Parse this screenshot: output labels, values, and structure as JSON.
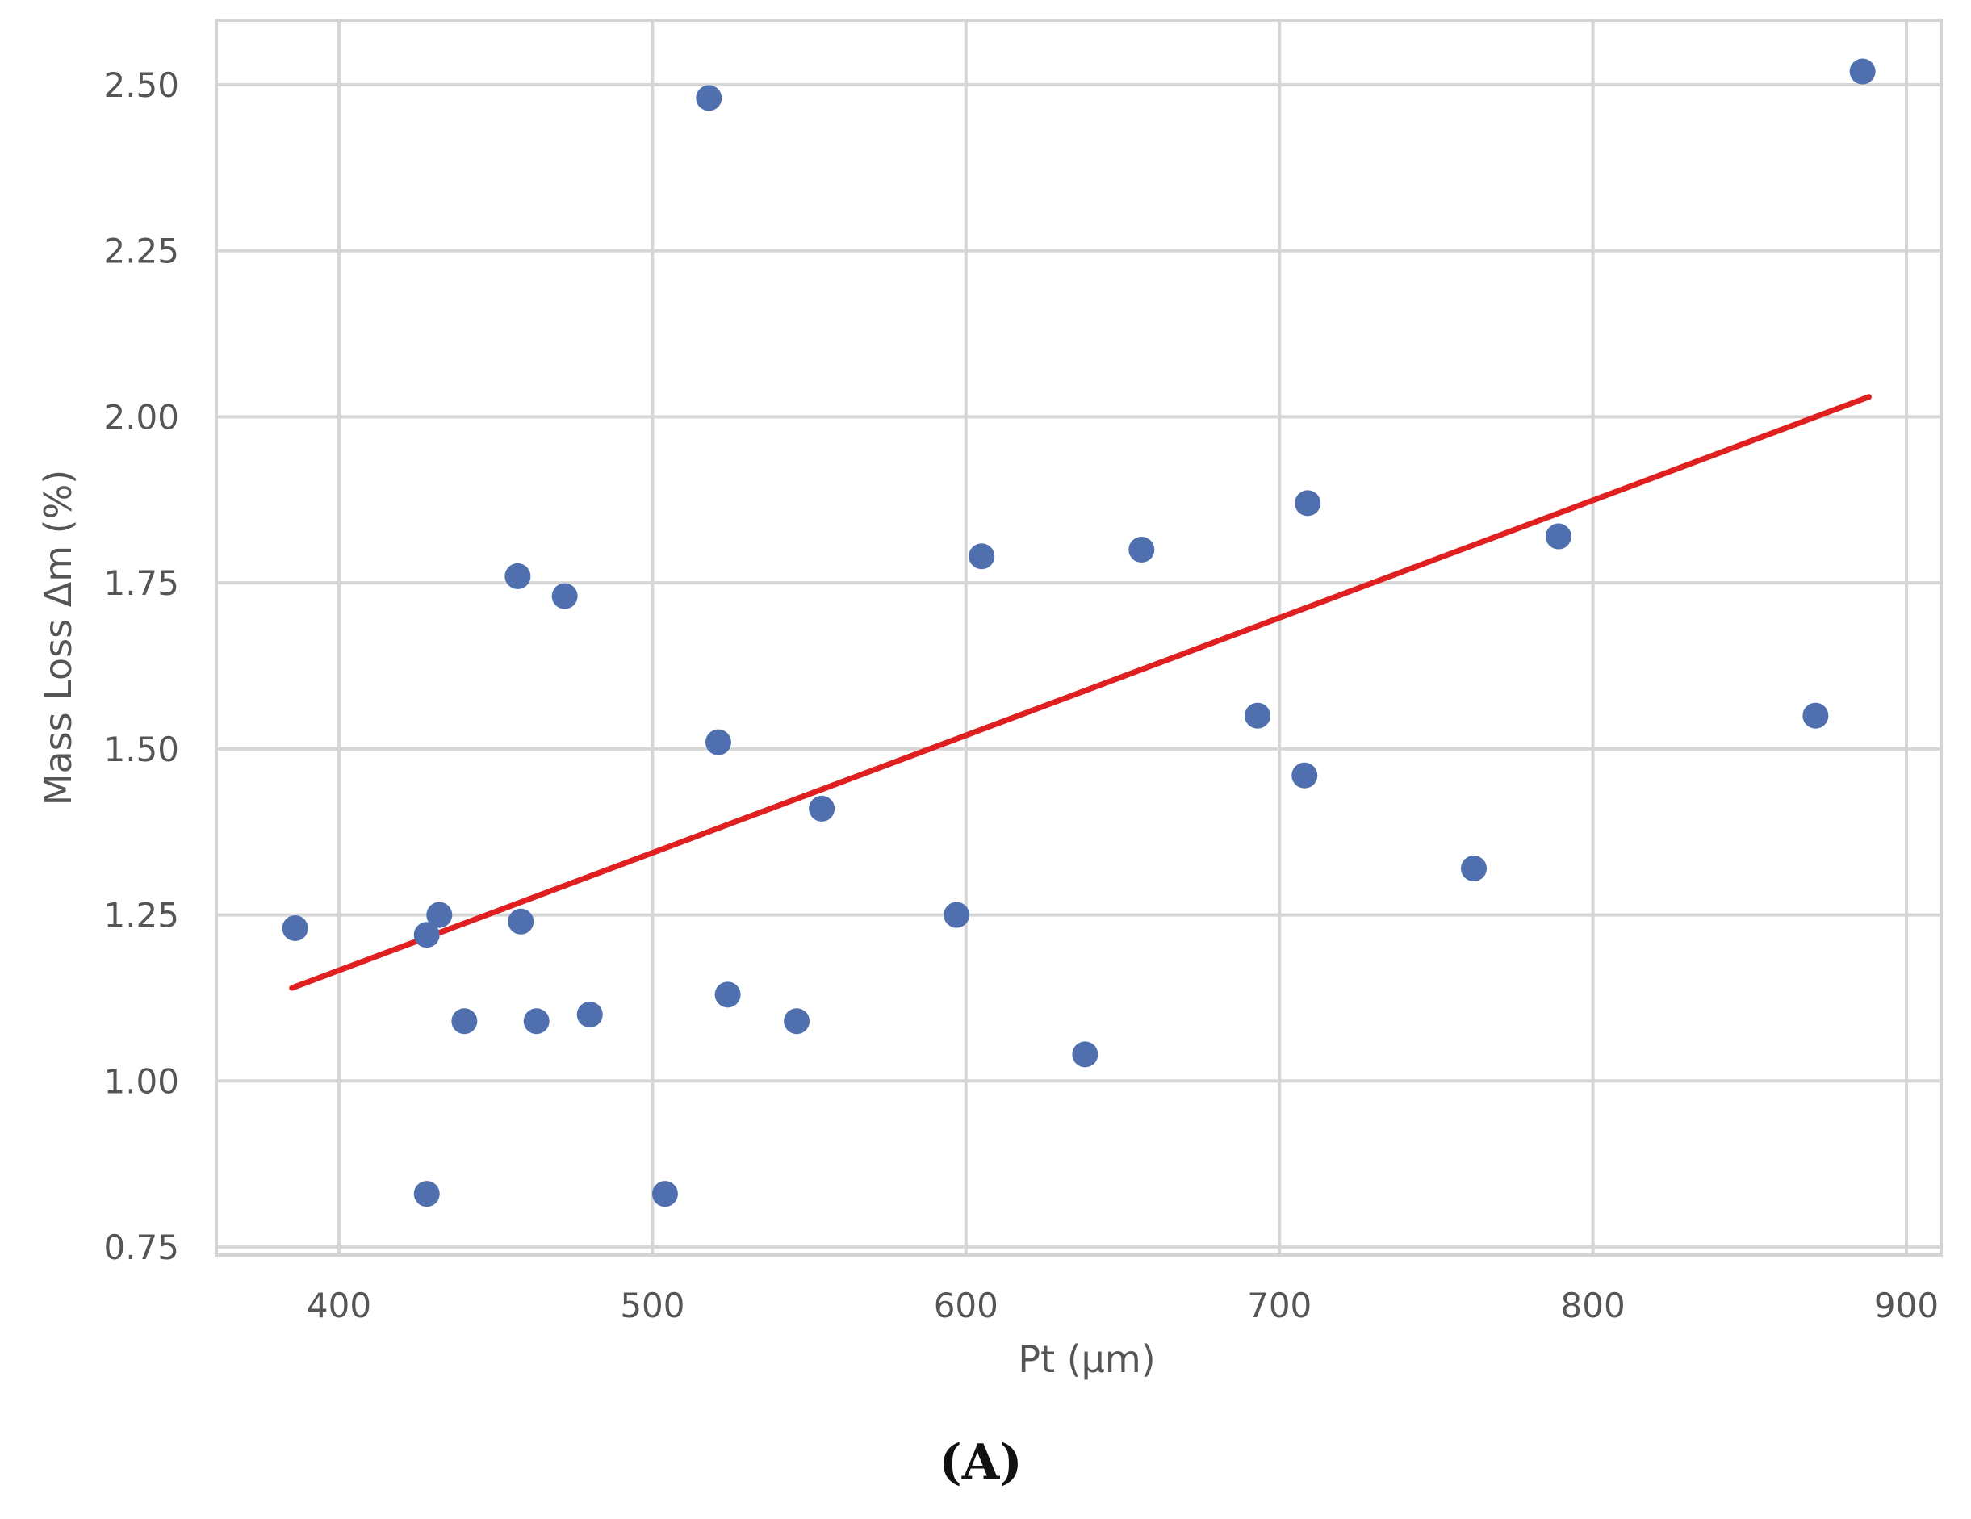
{
  "chart_data": {
    "type": "scatter",
    "xlabel": "Pt (µm)",
    "ylabel": "Mass Loss Δm (%)",
    "xlim": [
      360,
      910
    ],
    "ylim": [
      0.75,
      2.6
    ],
    "xticks": [
      400,
      500,
      600,
      700,
      800,
      900
    ],
    "yticks": [
      0.75,
      1.0,
      1.25,
      1.5,
      1.75,
      2.0,
      2.25,
      2.5
    ],
    "xtick_labels": [
      "400",
      "500",
      "600",
      "700",
      "800",
      "900"
    ],
    "ytick_labels": [
      "0.75",
      "1.00",
      "1.25",
      "1.50",
      "1.75",
      "2.00",
      "2.25",
      "2.50"
    ],
    "grid": true,
    "point_color": "#4f6fae",
    "trend_color": "#e02020",
    "points": [
      {
        "x": 386,
        "y": 1.23
      },
      {
        "x": 428,
        "y": 1.22
      },
      {
        "x": 432,
        "y": 1.25
      },
      {
        "x": 428,
        "y": 0.83
      },
      {
        "x": 440,
        "y": 1.09
      },
      {
        "x": 457,
        "y": 1.76
      },
      {
        "x": 458,
        "y": 1.24
      },
      {
        "x": 463,
        "y": 1.09
      },
      {
        "x": 472,
        "y": 1.73
      },
      {
        "x": 480,
        "y": 1.1
      },
      {
        "x": 504,
        "y": 0.83
      },
      {
        "x": 518,
        "y": 2.48
      },
      {
        "x": 521,
        "y": 1.51
      },
      {
        "x": 524,
        "y": 1.13
      },
      {
        "x": 546,
        "y": 1.09
      },
      {
        "x": 554,
        "y": 1.41
      },
      {
        "x": 597,
        "y": 1.25
      },
      {
        "x": 605,
        "y": 1.79
      },
      {
        "x": 638,
        "y": 1.04
      },
      {
        "x": 656,
        "y": 1.8
      },
      {
        "x": 693,
        "y": 1.55
      },
      {
        "x": 708,
        "y": 1.46
      },
      {
        "x": 709,
        "y": 1.87
      },
      {
        "x": 762,
        "y": 1.32
      },
      {
        "x": 789,
        "y": 1.82
      },
      {
        "x": 871,
        "y": 1.55
      },
      {
        "x": 886,
        "y": 2.52
      }
    ],
    "trendline": {
      "x": [
        385,
        888
      ],
      "y": [
        1.14,
        2.03
      ]
    }
  },
  "caption": "(A)"
}
